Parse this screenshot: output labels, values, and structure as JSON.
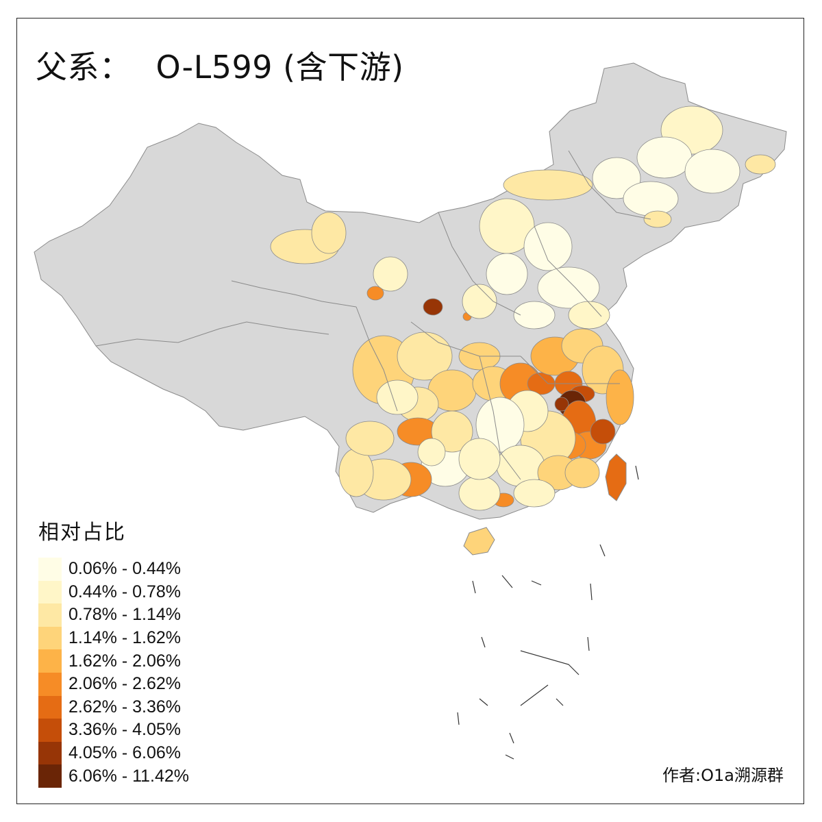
{
  "title": {
    "prefix": "父系：",
    "series": "O-L599 (含下游)"
  },
  "legend": {
    "title": "相对占比",
    "bins": [
      {
        "label": "0.06% - 0.44%",
        "color": "#fffde6"
      },
      {
        "label": "0.44% - 0.78%",
        "color": "#fff6c8"
      },
      {
        "label": "0.78% - 1.14%",
        "color": "#fee8a4"
      },
      {
        "label": "1.14% - 1.62%",
        "color": "#fed47a"
      },
      {
        "label": "1.62% - 2.06%",
        "color": "#fdb348"
      },
      {
        "label": "2.06% - 2.62%",
        "color": "#f68c26"
      },
      {
        "label": "2.62% - 3.36%",
        "color": "#e56c14"
      },
      {
        "label": "3.36% - 4.05%",
        "color": "#c54e09"
      },
      {
        "label": "4.05% - 6.06%",
        "color": "#973506"
      },
      {
        "label": "6.06% - 11.42%",
        "color": "#6a2506"
      }
    ]
  },
  "no_data_color": "#d8d8d8",
  "border_color": "#8a8a8a",
  "credit": "作者:O1a溯源群"
}
